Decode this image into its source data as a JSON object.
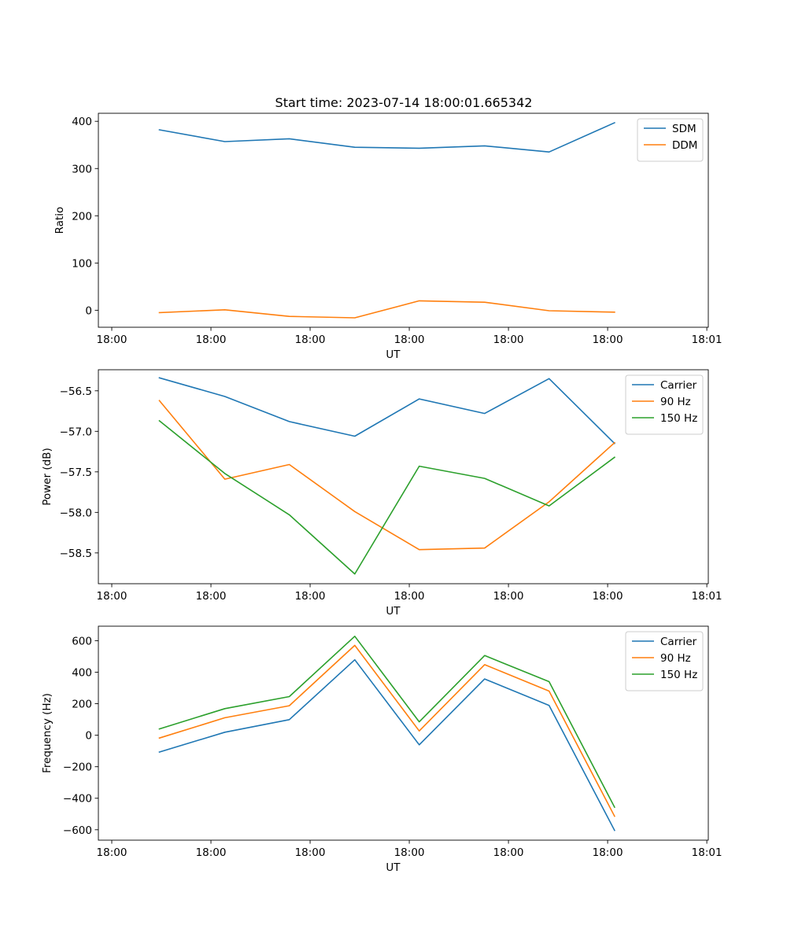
{
  "figure": {
    "title": "Start time: 2023-07-14 18:00:01.665342"
  },
  "chart_data": [
    {
      "type": "line",
      "title": "Start time: 2023-07-14 18:00:01.665342",
      "xlabel": "UT",
      "ylabel": "Ratio",
      "x_tick_labels": [
        "18:00",
        "18:00",
        "18:00",
        "18:00",
        "18:00",
        "18:00",
        "18:01"
      ],
      "x_ticks_s": [
        0,
        10,
        20,
        30,
        40,
        50,
        60
      ],
      "xlim_s": [
        -1.35,
        60.15
      ],
      "x_s": [
        4.8,
        11.4,
        17.9,
        24.5,
        31.0,
        37.6,
        44.1,
        50.7
      ],
      "ylim": [
        -36,
        417
      ],
      "yticks": [
        0,
        100,
        200,
        300,
        400
      ],
      "ytick_labels": [
        "0",
        "100",
        "200",
        "300",
        "400"
      ],
      "legend_position": "top-right",
      "series": [
        {
          "name": "SDM",
          "color": "#1f77b4",
          "values": [
            382,
            357,
            363,
            345,
            343,
            348,
            335,
            397
          ]
        },
        {
          "name": "DDM",
          "color": "#ff7f0e",
          "values": [
            -5,
            1,
            -13,
            -16,
            20,
            17,
            -1,
            -4
          ]
        }
      ]
    },
    {
      "type": "line",
      "title": "",
      "xlabel": "UT",
      "ylabel": "Power (dB)",
      "x_tick_labels": [
        "18:00",
        "18:00",
        "18:00",
        "18:00",
        "18:00",
        "18:00",
        "18:01"
      ],
      "x_ticks_s": [
        0,
        10,
        20,
        30,
        40,
        50,
        60
      ],
      "xlim_s": [
        -1.35,
        60.15
      ],
      "x_s": [
        4.8,
        11.4,
        17.9,
        24.5,
        31.0,
        37.6,
        44.1,
        50.7
      ],
      "ylim": [
        -58.88,
        -56.24
      ],
      "yticks": [
        -56.5,
        -57.0,
        -57.5,
        -58.0,
        -58.5
      ],
      "ytick_labels": [
        "−56.5",
        "−57.0",
        "−57.5",
        "−58.0",
        "−58.5"
      ],
      "legend_position": "top-right",
      "series": [
        {
          "name": "Carrier",
          "color": "#1f77b4",
          "values": [
            -56.34,
            -56.57,
            -56.88,
            -57.06,
            -56.6,
            -56.78,
            -56.35,
            -57.15
          ]
        },
        {
          "name": "90 Hz",
          "color": "#ff7f0e",
          "values": [
            -56.62,
            -57.59,
            -57.41,
            -57.99,
            -58.46,
            -58.44,
            -57.87,
            -57.14
          ]
        },
        {
          "name": "150 Hz",
          "color": "#2ca02c",
          "values": [
            -56.87,
            -57.52,
            -58.03,
            -58.76,
            -57.43,
            -57.58,
            -57.92,
            -57.32
          ]
        }
      ]
    },
    {
      "type": "line",
      "title": "",
      "xlabel": "UT",
      "ylabel": "Frequency (Hz)",
      "x_tick_labels": [
        "18:00",
        "18:00",
        "18:00",
        "18:00",
        "18:00",
        "18:00",
        "18:01"
      ],
      "x_ticks_s": [
        0,
        10,
        20,
        30,
        40,
        50,
        60
      ],
      "xlim_s": [
        -1.35,
        60.15
      ],
      "x_s": [
        4.8,
        11.4,
        17.9,
        24.5,
        31.0,
        37.6,
        44.1,
        50.7
      ],
      "ylim": [
        -666,
        692
      ],
      "yticks": [
        600,
        400,
        200,
        0,
        -200,
        -400,
        -600
      ],
      "ytick_labels": [
        "600",
        "400",
        "200",
        "0",
        "−200",
        "−400",
        "−600"
      ],
      "legend_position": "top-right",
      "series": [
        {
          "name": "Carrier",
          "color": "#1f77b4",
          "values": [
            -107,
            19,
            99,
            479,
            -61,
            357,
            189,
            -604
          ]
        },
        {
          "name": "90 Hz",
          "color": "#ff7f0e",
          "values": [
            -18,
            111,
            187,
            570,
            27,
            448,
            280,
            -514
          ]
        },
        {
          "name": "150 Hz",
          "color": "#2ca02c",
          "values": [
            40,
            169,
            245,
            628,
            85,
            506,
            340,
            -457
          ]
        }
      ]
    }
  ]
}
